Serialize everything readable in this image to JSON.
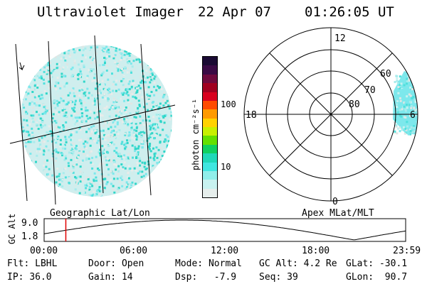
{
  "header": {
    "instrument": "Ultraviolet Imager",
    "date": "22 Apr 07",
    "time": "01:26:05 UT"
  },
  "colorbar": {
    "label": "photon cm⁻²s⁻¹",
    "ticks": [
      {
        "label": "100",
        "value": 100
      },
      {
        "label": "10",
        "value": 10
      }
    ],
    "colors": [
      "#1a0a33",
      "#3a0a45",
      "#6e0a3e",
      "#a00020",
      "#d8001e",
      "#ff4b00",
      "#ff9a00",
      "#ffd200",
      "#c8f000",
      "#64e000",
      "#10d060",
      "#20d8b8",
      "#40e6e0",
      "#90eeea",
      "#c8f2f0",
      "#e6eeec"
    ]
  },
  "polar": {
    "mlt_labels": [
      {
        "label": "12",
        "angle_deg": 90
      },
      {
        "label": "18",
        "angle_deg": 180
      },
      {
        "label": "6",
        "angle_deg": 0
      },
      {
        "label": "0",
        "angle_deg": 270
      }
    ],
    "lat_labels": [
      "60",
      "70",
      "80"
    ]
  },
  "maps": {
    "left_caption": "Geographic Lat/Lon",
    "right_caption": "Apex MLat/MLT"
  },
  "timeline": {
    "axis_title": "GC Alt",
    "y_max": "9.0",
    "y_min": "1.8",
    "x_ticks": [
      "00:00",
      "06:00",
      "12:00",
      "18:00",
      "23:59"
    ],
    "current_time_fraction": 0.06,
    "current_marker_color": "#e00000"
  },
  "status": {
    "rows": [
      [
        {
          "key": "Flt:",
          "value": "LBHL"
        },
        {
          "key": "Door:",
          "value": "Open"
        },
        {
          "key": "Mode:",
          "value": "Normal"
        },
        {
          "key": "GC Alt:",
          "value": "4.2 Re"
        },
        {
          "key": "GLat:",
          "value": "-30.1"
        }
      ],
      [
        {
          "key": "IP:",
          "value": "36.0"
        },
        {
          "key": "Gain:",
          "value": "14"
        },
        {
          "key": "Dsp:",
          "value": "  -7.9"
        },
        {
          "key": "Seq:",
          "value": "39"
        },
        {
          "key": "GLon:",
          "value": " 90.7"
        }
      ]
    ]
  }
}
